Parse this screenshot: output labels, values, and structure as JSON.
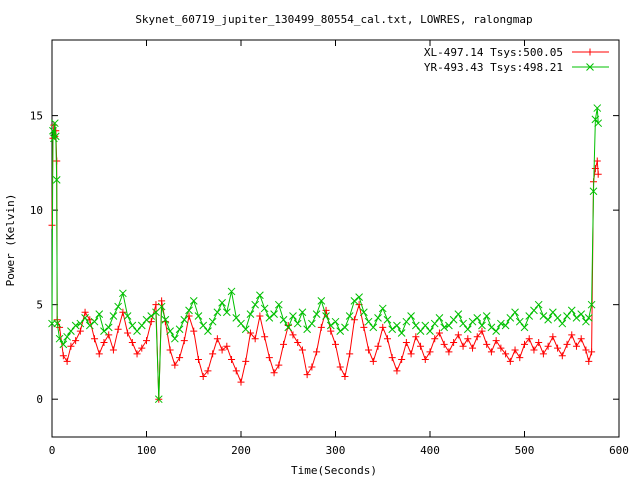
{
  "chart_data": {
    "type": "line",
    "title": "Skynet_60719_jupiter_130499_80554_cal.txt, LOWRES, ralongmap",
    "xlabel": "Time(Seconds)",
    "ylabel": "Power (Kelvin)",
    "xlim": [
      0,
      600
    ],
    "ylim": [
      -2,
      19
    ],
    "xticks": [
      0,
      100,
      200,
      300,
      400,
      500,
      600
    ],
    "yticks": [
      0,
      5,
      10,
      15
    ],
    "grid": false,
    "legend_position": "top-right",
    "series": [
      {
        "name": "XL-497.14 Tsys:500.05",
        "color": "#ff0000",
        "marker": "plus",
        "points": [
          [
            0,
            9.2
          ],
          [
            1,
            13.8
          ],
          [
            2,
            14.5
          ],
          [
            3,
            13.9
          ],
          [
            4,
            14.2
          ],
          [
            5,
            12.6
          ],
          [
            5.5,
            4.2
          ],
          [
            8,
            3.8
          ],
          [
            12,
            2.3
          ],
          [
            16,
            2.0
          ],
          [
            20,
            2.8
          ],
          [
            25,
            3.1
          ],
          [
            30,
            3.6
          ],
          [
            35,
            4.6
          ],
          [
            40,
            4.2
          ],
          [
            45,
            3.2
          ],
          [
            50,
            2.4
          ],
          [
            55,
            3.0
          ],
          [
            60,
            3.4
          ],
          [
            65,
            2.6
          ],
          [
            70,
            3.7
          ],
          [
            75,
            4.6
          ],
          [
            80,
            3.5
          ],
          [
            85,
            3.0
          ],
          [
            90,
            2.4
          ],
          [
            95,
            2.7
          ],
          [
            100,
            3.1
          ],
          [
            105,
            4.1
          ],
          [
            110,
            5.0
          ],
          [
            113,
            0.0
          ],
          [
            116,
            5.2
          ],
          [
            120,
            4.1
          ],
          [
            125,
            2.6
          ],
          [
            130,
            1.8
          ],
          [
            135,
            2.2
          ],
          [
            140,
            3.1
          ],
          [
            145,
            4.4
          ],
          [
            150,
            3.6
          ],
          [
            155,
            2.1
          ],
          [
            160,
            1.2
          ],
          [
            165,
            1.5
          ],
          [
            170,
            2.4
          ],
          [
            175,
            3.2
          ],
          [
            180,
            2.6
          ],
          [
            185,
            2.8
          ],
          [
            190,
            2.1
          ],
          [
            195,
            1.5
          ],
          [
            200,
            0.9
          ],
          [
            205,
            2.0
          ],
          [
            210,
            3.5
          ],
          [
            215,
            3.2
          ],
          [
            220,
            4.4
          ],
          [
            225,
            3.3
          ],
          [
            230,
            2.2
          ],
          [
            235,
            1.4
          ],
          [
            240,
            1.8
          ],
          [
            245,
            2.9
          ],
          [
            250,
            3.9
          ],
          [
            255,
            3.4
          ],
          [
            260,
            3.0
          ],
          [
            265,
            2.6
          ],
          [
            270,
            1.3
          ],
          [
            275,
            1.7
          ],
          [
            280,
            2.5
          ],
          [
            285,
            3.8
          ],
          [
            290,
            4.7
          ],
          [
            295,
            3.6
          ],
          [
            300,
            2.9
          ],
          [
            305,
            1.7
          ],
          [
            310,
            1.2
          ],
          [
            315,
            2.4
          ],
          [
            320,
            4.2
          ],
          [
            325,
            5.0
          ],
          [
            330,
            3.8
          ],
          [
            335,
            2.6
          ],
          [
            340,
            2.0
          ],
          [
            345,
            2.8
          ],
          [
            350,
            3.8
          ],
          [
            355,
            3.2
          ],
          [
            360,
            2.2
          ],
          [
            365,
            1.5
          ],
          [
            370,
            2.1
          ],
          [
            375,
            3.0
          ],
          [
            380,
            2.4
          ],
          [
            385,
            3.3
          ],
          [
            390,
            2.8
          ],
          [
            395,
            2.1
          ],
          [
            400,
            2.5
          ],
          [
            405,
            3.2
          ],
          [
            410,
            3.5
          ],
          [
            415,
            2.9
          ],
          [
            420,
            2.5
          ],
          [
            425,
            3.0
          ],
          [
            430,
            3.4
          ],
          [
            435,
            2.8
          ],
          [
            440,
            3.2
          ],
          [
            445,
            2.7
          ],
          [
            450,
            3.3
          ],
          [
            455,
            3.6
          ],
          [
            460,
            2.9
          ],
          [
            465,
            2.5
          ],
          [
            470,
            3.1
          ],
          [
            475,
            2.7
          ],
          [
            480,
            2.4
          ],
          [
            485,
            2.0
          ],
          [
            490,
            2.6
          ],
          [
            495,
            2.2
          ],
          [
            500,
            2.9
          ],
          [
            505,
            3.2
          ],
          [
            510,
            2.6
          ],
          [
            515,
            3.0
          ],
          [
            520,
            2.4
          ],
          [
            525,
            2.8
          ],
          [
            530,
            3.3
          ],
          [
            535,
            2.7
          ],
          [
            540,
            2.3
          ],
          [
            545,
            2.9
          ],
          [
            550,
            3.4
          ],
          [
            555,
            2.8
          ],
          [
            560,
            3.2
          ],
          [
            565,
            2.6
          ],
          [
            568,
            2.0
          ],
          [
            571,
            2.5
          ],
          [
            573,
            11.5
          ],
          [
            575,
            12.2
          ],
          [
            577,
            12.6
          ],
          [
            578,
            11.9
          ]
        ]
      },
      {
        "name": "YR-493.43 Tsys:498.21",
        "color": "#00c000",
        "marker": "cross",
        "points": [
          [
            0,
            4.0
          ],
          [
            1,
            14.2
          ],
          [
            2,
            13.8
          ],
          [
            3,
            14.6
          ],
          [
            4,
            13.9
          ],
          [
            5,
            11.6
          ],
          [
            5.5,
            4.0
          ],
          [
            8,
            3.2
          ],
          [
            12,
            2.9
          ],
          [
            16,
            3.3
          ],
          [
            20,
            3.6
          ],
          [
            25,
            3.9
          ],
          [
            30,
            4.0
          ],
          [
            35,
            4.3
          ],
          [
            40,
            3.9
          ],
          [
            45,
            4.1
          ],
          [
            50,
            4.5
          ],
          [
            55,
            3.6
          ],
          [
            60,
            3.8
          ],
          [
            65,
            4.4
          ],
          [
            70,
            4.9
          ],
          [
            75,
            5.6
          ],
          [
            80,
            4.4
          ],
          [
            85,
            3.9
          ],
          [
            90,
            3.6
          ],
          [
            95,
            3.9
          ],
          [
            100,
            4.2
          ],
          [
            105,
            4.4
          ],
          [
            110,
            4.6
          ],
          [
            113,
            0.0
          ],
          [
            116,
            4.9
          ],
          [
            120,
            4.2
          ],
          [
            125,
            3.6
          ],
          [
            130,
            3.2
          ],
          [
            135,
            3.7
          ],
          [
            140,
            4.2
          ],
          [
            145,
            4.7
          ],
          [
            150,
            5.2
          ],
          [
            155,
            4.4
          ],
          [
            160,
            3.9
          ],
          [
            165,
            3.6
          ],
          [
            170,
            4.1
          ],
          [
            175,
            4.6
          ],
          [
            180,
            5.1
          ],
          [
            185,
            4.6
          ],
          [
            190,
            5.7
          ],
          [
            195,
            4.3
          ],
          [
            200,
            4.0
          ],
          [
            205,
            3.7
          ],
          [
            210,
            4.5
          ],
          [
            215,
            5.0
          ],
          [
            220,
            5.5
          ],
          [
            225,
            4.8
          ],
          [
            230,
            4.3
          ],
          [
            235,
            4.5
          ],
          [
            240,
            5.0
          ],
          [
            245,
            4.2
          ],
          [
            250,
            3.8
          ],
          [
            255,
            4.4
          ],
          [
            260,
            4.0
          ],
          [
            265,
            4.6
          ],
          [
            270,
            3.7
          ],
          [
            275,
            4.0
          ],
          [
            280,
            4.5
          ],
          [
            285,
            5.2
          ],
          [
            290,
            4.4
          ],
          [
            295,
            3.9
          ],
          [
            300,
            4.1
          ],
          [
            305,
            3.6
          ],
          [
            310,
            3.8
          ],
          [
            315,
            4.4
          ],
          [
            320,
            5.2
          ],
          [
            325,
            5.4
          ],
          [
            330,
            4.6
          ],
          [
            335,
            4.1
          ],
          [
            340,
            3.8
          ],
          [
            345,
            4.3
          ],
          [
            350,
            4.8
          ],
          [
            355,
            4.2
          ],
          [
            360,
            3.7
          ],
          [
            365,
            3.9
          ],
          [
            370,
            3.5
          ],
          [
            375,
            4.1
          ],
          [
            380,
            4.4
          ],
          [
            385,
            3.9
          ],
          [
            390,
            3.6
          ],
          [
            395,
            3.9
          ],
          [
            400,
            3.6
          ],
          [
            405,
            4.0
          ],
          [
            410,
            4.3
          ],
          [
            415,
            3.8
          ],
          [
            420,
            3.9
          ],
          [
            425,
            4.2
          ],
          [
            430,
            4.5
          ],
          [
            435,
            4.0
          ],
          [
            440,
            3.7
          ],
          [
            445,
            4.1
          ],
          [
            450,
            4.3
          ],
          [
            455,
            3.9
          ],
          [
            460,
            4.4
          ],
          [
            465,
            3.8
          ],
          [
            470,
            3.6
          ],
          [
            475,
            4.0
          ],
          [
            480,
            3.9
          ],
          [
            485,
            4.3
          ],
          [
            490,
            4.6
          ],
          [
            495,
            4.1
          ],
          [
            500,
            3.8
          ],
          [
            505,
            4.4
          ],
          [
            510,
            4.7
          ],
          [
            515,
            5.0
          ],
          [
            520,
            4.4
          ],
          [
            525,
            4.2
          ],
          [
            530,
            4.6
          ],
          [
            535,
            4.3
          ],
          [
            540,
            4.0
          ],
          [
            545,
            4.4
          ],
          [
            550,
            4.7
          ],
          [
            555,
            4.3
          ],
          [
            560,
            4.5
          ],
          [
            565,
            4.1
          ],
          [
            568,
            4.3
          ],
          [
            571,
            5.0
          ],
          [
            573,
            11.0
          ],
          [
            575,
            14.8
          ],
          [
            577,
            15.4
          ],
          [
            578,
            14.6
          ]
        ]
      }
    ]
  }
}
